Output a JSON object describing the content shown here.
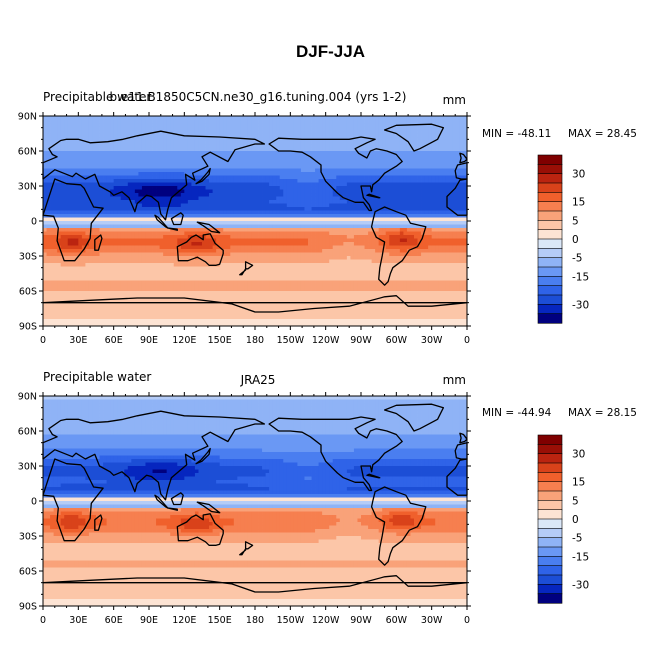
{
  "figure": {
    "title": "DJF-JJA"
  },
  "colors": {
    "levels": [
      -35,
      -30,
      -25,
      -20,
      -15,
      -10,
      -5,
      -2.5,
      0,
      2.5,
      5,
      10,
      15,
      20,
      25,
      30,
      35
    ],
    "fills": [
      "#00007f",
      "#0626bf",
      "#1c4ed6",
      "#2f63e8",
      "#4a7ef0",
      "#6a98f4",
      "#8fb3f6",
      "#b5ccf7",
      "#dbe8f8",
      "#fde4d4",
      "#fcc6a8",
      "#f9a279",
      "#f67f4f",
      "#f0602c",
      "#d9421a",
      "#bb2410",
      "#990f06",
      "#7f0000"
    ],
    "labels": [
      "30",
      "15",
      "5",
      "0",
      "-5",
      "-15",
      "-30"
    ]
  },
  "axes": {
    "lat_ticks": [
      "90N",
      "60N",
      "30N",
      "0",
      "30S",
      "60S",
      "90S"
    ],
    "lon_ticks": [
      "0",
      "30E",
      "60E",
      "90E",
      "120E",
      "150E",
      "180",
      "150W",
      "120W",
      "90W",
      "60W",
      "30W",
      "0"
    ]
  },
  "panels": [
    {
      "left_label": "Precipitable water",
      "center_label": "b.e11.B1850C5CN.ne30_g16.tuning.004 (yrs 1-2)",
      "units": "mm",
      "min_label": "MIN = -48.11",
      "max_label": "MAX =  28.45"
    },
    {
      "left_label": "Precipitable water",
      "center_label": "JRA25",
      "units": "mm",
      "min_label": "MIN = -44.94",
      "max_label": "MAX =  28.15"
    }
  ],
  "chart_data": [
    {
      "type": "heatmap",
      "title": "DJF-JJA",
      "variable": "Precipitable water",
      "case": "b.e11.B1850C5CN.ne30_g16.tuning.004 (yrs 1-2)",
      "units": "mm",
      "x": "longitude 0 to 360",
      "y": "latitude -90 to 90",
      "xlim": [
        0,
        360
      ],
      "ylim": [
        -90,
        90
      ],
      "min": -48.11,
      "max": 28.45
    },
    {
      "type": "heatmap",
      "title": "DJF-JJA",
      "variable": "Precipitable water",
      "case": "JRA25",
      "units": "mm",
      "x": "longitude 0 to 360",
      "y": "latitude -90 to 90",
      "xlim": [
        0,
        360
      ],
      "ylim": [
        -90,
        90
      ],
      "min": -44.94,
      "max": 28.15
    }
  ]
}
